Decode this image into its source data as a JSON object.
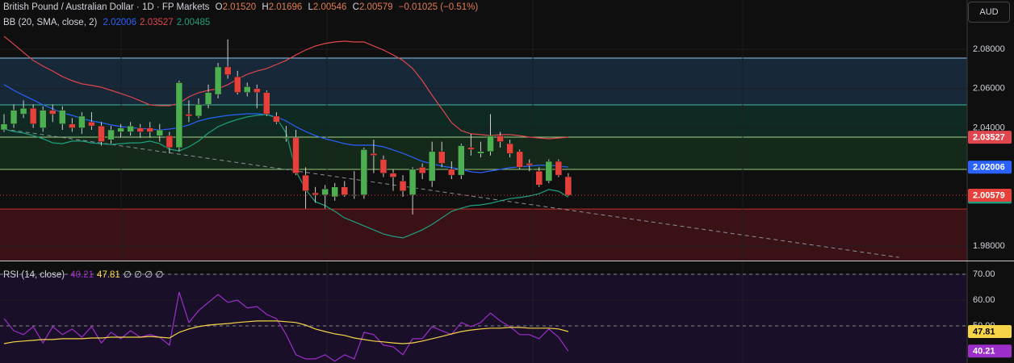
{
  "header": {
    "title": "British Pound / Australian Dollar · 1D · FP Markets",
    "ohlc": [
      {
        "key": "O",
        "value": "2.01520"
      },
      {
        "key": "H",
        "value": "2.01696"
      },
      {
        "key": "L",
        "value": "2.00546"
      },
      {
        "key": "C",
        "value": "2.00579"
      }
    ],
    "change": "−0.01025 (−0.51%)",
    "currency": "AUD"
  },
  "chart_data": [
    {
      "type": "candlestick",
      "indicator": "BB (20, SMA, close, 2)",
      "up_color": "#4caf50",
      "down_color": "#e5403a",
      "open": [
        2.039,
        2.042,
        2.047,
        2.05,
        2.04,
        2.049,
        2.042,
        2.042,
        2.04,
        2.043,
        2.041,
        2.034,
        2.038,
        2.038,
        2.04,
        2.04,
        2.036,
        2.036,
        2.03,
        2.047,
        2.046,
        2.052,
        2.057,
        2.071,
        2.066,
        2.058,
        2.06,
        2.058,
        2.046,
        2.035,
        2.035,
        2.016,
        2.007,
        2.006,
        2.005,
        2.01,
        2.006,
        2.006,
        2.027,
        2.024,
        2.017,
        2.013,
        2.006,
        2.02,
        2.013,
        2.028,
        2.019,
        2.016,
        2.03,
        2.027,
        2.028,
        2.036,
        2.032,
        2.028,
        2.022,
        2.018,
        2.013,
        2.023,
        2.0152
      ],
      "high": [
        2.047,
        2.052,
        2.054,
        2.052,
        2.051,
        2.052,
        2.051,
        2.045,
        2.048,
        2.048,
        2.043,
        2.041,
        2.042,
        2.043,
        2.042,
        2.043,
        2.042,
        2.038,
        2.064,
        2.054,
        2.055,
        2.062,
        2.073,
        2.085,
        2.069,
        2.063,
        2.062,
        2.059,
        2.048,
        2.041,
        2.039,
        2.02,
        2.01,
        2.011,
        2.012,
        2.013,
        2.018,
        2.03,
        2.034,
        2.026,
        2.019,
        2.016,
        2.02,
        2.022,
        2.033,
        2.033,
        2.023,
        2.032,
        2.037,
        2.033,
        2.047,
        2.038,
        2.034,
        2.029,
        2.024,
        2.02,
        2.024,
        2.024,
        2.01696
      ],
      "low": [
        2.038,
        2.04,
        2.045,
        2.04,
        2.038,
        2.043,
        2.039,
        2.038,
        2.037,
        2.039,
        2.031,
        2.032,
        2.035,
        2.036,
        2.035,
        2.035,
        2.033,
        2.027,
        2.028,
        2.043,
        2.045,
        2.05,
        2.055,
        2.065,
        2.057,
        2.056,
        2.05,
        2.046,
        2.042,
        2.033,
        2.016,
        1.999,
        2.002,
        1.999,
        2.003,
        2.005,
        2.004,
        2.004,
        2.017,
        2.015,
        2.008,
        2.005,
        1.996,
        2.014,
        2.01,
        2.02,
        2.014,
        2.014,
        2.026,
        2.025,
        2.026,
        2.03,
        2.025,
        2.019,
        2.018,
        2.01,
        2.012,
        2.015,
        2.00546
      ],
      "close": [
        2.042,
        2.049,
        2.05,
        2.042,
        2.049,
        2.047,
        2.049,
        2.04,
        2.046,
        2.041,
        2.033,
        2.039,
        2.04,
        2.041,
        2.038,
        2.038,
        2.039,
        2.03,
        2.063,
        2.046,
        2.052,
        2.058,
        2.071,
        2.067,
        2.058,
        2.061,
        2.058,
        2.047,
        2.043,
        2.035,
        2.017,
        2.008,
        2.006,
        2.009,
        2.01,
        2.006,
        2.006,
        2.029,
        2.026,
        2.017,
        2.015,
        2.008,
        2.019,
        2.017,
        2.028,
        2.022,
        2.016,
        2.031,
        2.029,
        2.028,
        2.036,
        2.033,
        2.027,
        2.02,
        2.021,
        2.011,
        2.023,
        2.016,
        2.00579
      ],
      "series": [
        {
          "color": "#2962ff",
          "values": [
            2.062,
            2.0591,
            2.0566,
            2.0542,
            2.0517,
            2.0497,
            2.0476,
            2.0464,
            2.0448,
            2.0435,
            2.0427,
            2.0415,
            2.0407,
            2.0402,
            2.0398,
            2.0394,
            2.039,
            2.0394,
            2.0402,
            2.0415,
            2.0435,
            2.0448,
            2.0456,
            2.0464,
            2.0468,
            2.0472,
            2.0472,
            2.0468,
            2.0456,
            2.0435,
            2.0406,
            2.0382,
            2.0361,
            2.0345,
            2.0333,
            2.032,
            2.0312,
            2.0312,
            2.0312,
            2.0304,
            2.0288,
            2.0271,
            2.0251,
            2.023,
            2.0218,
            2.0206,
            2.0198,
            2.0189,
            2.0177,
            2.0173,
            2.0181,
            2.0189,
            2.0198,
            2.0202,
            2.0206,
            2.021,
            2.021,
            2.0206,
            2.02006
          ]
        },
        {
          "color": "#e0464e",
          "values": [
            2.0866,
            2.0825,
            2.0784,
            2.0743,
            2.0714,
            2.0689,
            2.0661,
            2.064,
            2.0624,
            2.0616,
            2.0607,
            2.0591,
            2.0575,
            2.0558,
            2.0538,
            2.0517,
            2.0513,
            2.0513,
            2.0525,
            2.0558,
            2.0579,
            2.0591,
            2.0599,
            2.062,
            2.0648,
            2.0673,
            2.0689,
            2.0702,
            2.0722,
            2.0743,
            2.0771,
            2.0796,
            2.0816,
            2.0829,
            2.0837,
            2.0841,
            2.0837,
            2.0837,
            2.0816,
            2.0796,
            2.0771,
            2.0743,
            2.0702,
            2.064,
            2.0566,
            2.0497,
            2.0427,
            2.0386,
            2.037,
            2.0366,
            2.0361,
            2.0366,
            2.0366,
            2.0361,
            2.0353,
            2.0349,
            2.0345,
            2.0349,
            2.03527
          ]
        },
        {
          "color": "#1f9e80",
          "values": [
            2.0394,
            2.0382,
            2.0374,
            2.0361,
            2.0345,
            2.0324,
            2.032,
            2.0333,
            2.0333,
            2.0324,
            2.032,
            2.0316,
            2.032,
            2.0324,
            2.0324,
            2.0333,
            2.032,
            2.0292,
            2.0283,
            2.0304,
            2.0333,
            2.0374,
            2.0406,
            2.0427,
            2.0443,
            2.0456,
            2.0464,
            2.0468,
            2.0451,
            2.0374,
            2.0181,
            2.0087,
            2.0025,
            2.0005,
            1.9976,
            1.9943,
            1.9923,
            1.9902,
            1.9882,
            1.9861,
            1.9849,
            1.9841,
            1.9861,
            1.9882,
            1.991,
            1.9943,
            1.9976,
            1.9992,
            2.0005,
            2.0009,
            2.0017,
            2.0029,
            2.0041,
            2.0046,
            2.0054,
            2.0066,
            2.0087,
            2.0078,
            2.00485
          ]
        }
      ],
      "levels": [
        {
          "value": 2.0755,
          "color": "#8fc3f0",
          "band_color": "#172838"
        },
        {
          "value": 2.0517,
          "color": "#3fb8a4",
          "band_color": "#0e2a22"
        },
        {
          "value": 2.0353,
          "color": "#a6d88a",
          "band_color": "#14291a"
        },
        {
          "value": 2.0189,
          "color": "#9ccc7a"
        },
        {
          "value": 1.9988,
          "color": "#c0302c",
          "band_color": "#3a1216"
        }
      ],
      "trendline": {
        "x": [
          0,
          92
        ],
        "values": [
          2.0394,
          1.9742
        ],
        "color": "#8a8f99"
      },
      "ylim": [
        1.9726,
        2.105
      ],
      "yticks": [
        {
          "value": 2.08,
          "label": "2.08000"
        },
        {
          "value": 2.06,
          "label": "2.06000"
        },
        {
          "value": 2.04,
          "label": "2.04000"
        },
        {
          "value": 1.98,
          "label": "1.98000"
        }
      ]
    },
    {
      "type": "line",
      "indicator": "RSI (14, close)",
      "legend_extra": "∅ ∅ ∅ ∅",
      "series": [
        {
          "color": "#9c2fc9",
          "values": [
            52.8,
            48.1,
            46.6,
            49.7,
            43.4,
            49.7,
            46.6,
            48.8,
            45.6,
            49.7,
            43.4,
            47.5,
            45,
            48.1,
            45.6,
            46.6,
            45.6,
            42.5,
            63.1,
            51.3,
            55.9,
            59.1,
            62.2,
            59.1,
            60,
            56.9,
            57.5,
            54.4,
            52.8,
            46.6,
            38.8,
            37.2,
            37.2,
            38.8,
            36.3,
            38.8,
            37.2,
            47.5,
            46.6,
            42.5,
            41.9,
            38.8,
            45,
            45,
            49.7,
            48.1,
            46.6,
            51.3,
            49.7,
            51.3,
            55,
            51.9,
            49.7,
            46.6,
            46.6,
            45,
            48.8,
            45.6,
            40.21
          ]
        },
        {
          "color": "#f5d547",
          "values": [
            43.1,
            43.8,
            44.1,
            44.4,
            44.7,
            44.7,
            45,
            45,
            45,
            45.3,
            45.3,
            45.6,
            45.6,
            45.6,
            45.6,
            45.9,
            45.6,
            45.3,
            47.5,
            48.8,
            49.7,
            50.3,
            50.6,
            50.9,
            51.3,
            51.6,
            51.9,
            51.9,
            51.9,
            51.6,
            51.3,
            50.3,
            48.8,
            47.8,
            46.9,
            46.3,
            45.3,
            44.7,
            44.1,
            43.8,
            43.4,
            43.1,
            43.4,
            44.1,
            45,
            45.9,
            46.9,
            47.8,
            48.4,
            48.8,
            49.1,
            49.1,
            49.4,
            49.4,
            49.1,
            49.1,
            49.1,
            48.8,
            47.81
          ]
        }
      ],
      "hlines": [
        70,
        50
      ],
      "band_color": "#1a0f29",
      "ylim": [
        35.6,
        74.7
      ],
      "yticks": [
        {
          "value": 70,
          "label": "70.00"
        },
        {
          "value": 60,
          "label": "60.00"
        },
        {
          "value": 50,
          "label": "50.00"
        }
      ]
    }
  ]
}
